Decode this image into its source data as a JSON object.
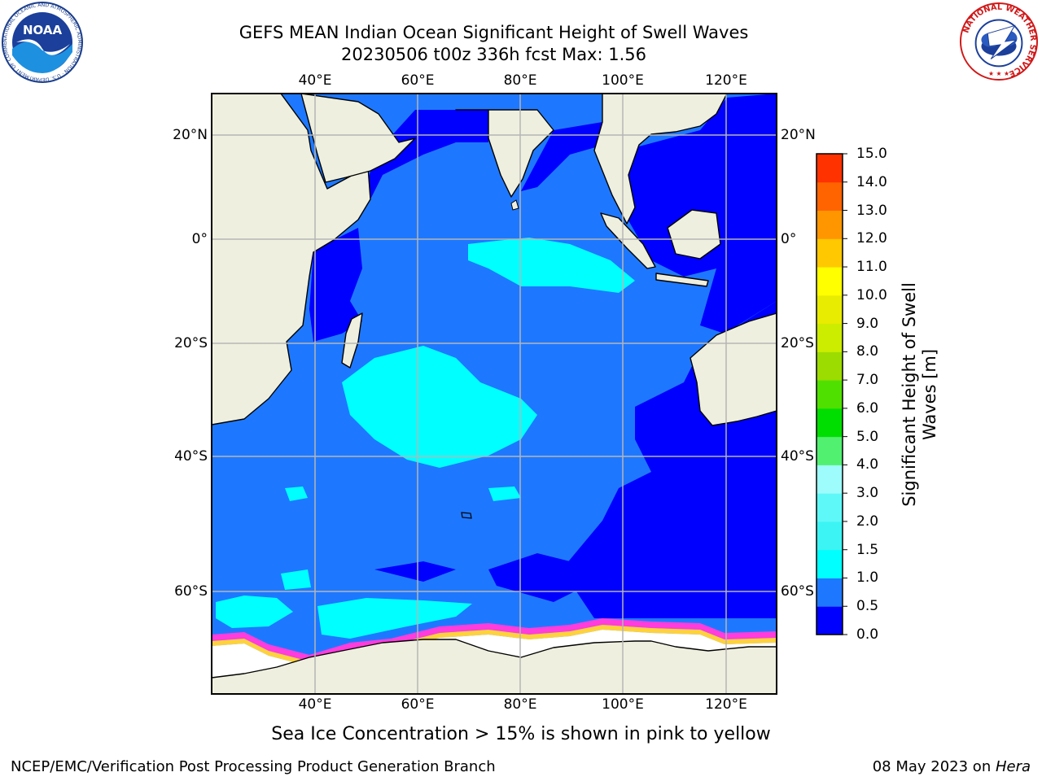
{
  "title_line1": "GEFS MEAN Indian Ocean Significant Height of Swell Waves",
  "title_line2": "20230506 t00z 336h fcst   Max: 1.56",
  "map": {
    "lon_labels": [
      "40°E",
      "60°E",
      "80°E",
      "100°E",
      "120°E"
    ],
    "lat_labels": [
      "20°N",
      "0°",
      "20°S",
      "40°S",
      "60°S"
    ]
  },
  "colorbar": {
    "label_line1": "Significant Height of Swell",
    "label_line2": "Waves [m]",
    "ticks": [
      "0.0",
      "0.5",
      "1.0",
      "1.5",
      "2.0",
      "3.0",
      "4.0",
      "5.0",
      "6.0",
      "7.0",
      "8.0",
      "9.0",
      "10.0",
      "11.0",
      "12.0",
      "13.0",
      "14.0",
      "15.0"
    ],
    "colors": [
      "#0000ff",
      "#1e78ff",
      "#00ffff",
      "#3cf4f4",
      "#5ff8f8",
      "#9efcfc",
      "#52f070",
      "#00dd00",
      "#50e000",
      "#9cdc00",
      "#ccec00",
      "#e8ec00",
      "#ffff00",
      "#ffc800",
      "#ff9600",
      "#ff6400",
      "#ff3200"
    ]
  },
  "ice_note": "Sea Ice Concentration > 15% is shown in pink to yellow",
  "footer_left": "NCEP/EMC/Verification Post Processing Product Generation Branch",
  "footer_right_prefix": "08 May 2023 on ",
  "footer_right_host": "Hera",
  "logos": {
    "noaa_text": "NOAA",
    "noaa_ring_text": "NATIONAL OCEANIC AND ATMOSPHERIC ADMINISTRATION · U.S. DEPARTMENT OF COMMERCE",
    "nws_ring_text": "NATIONAL WEATHER SERVICE"
  }
}
